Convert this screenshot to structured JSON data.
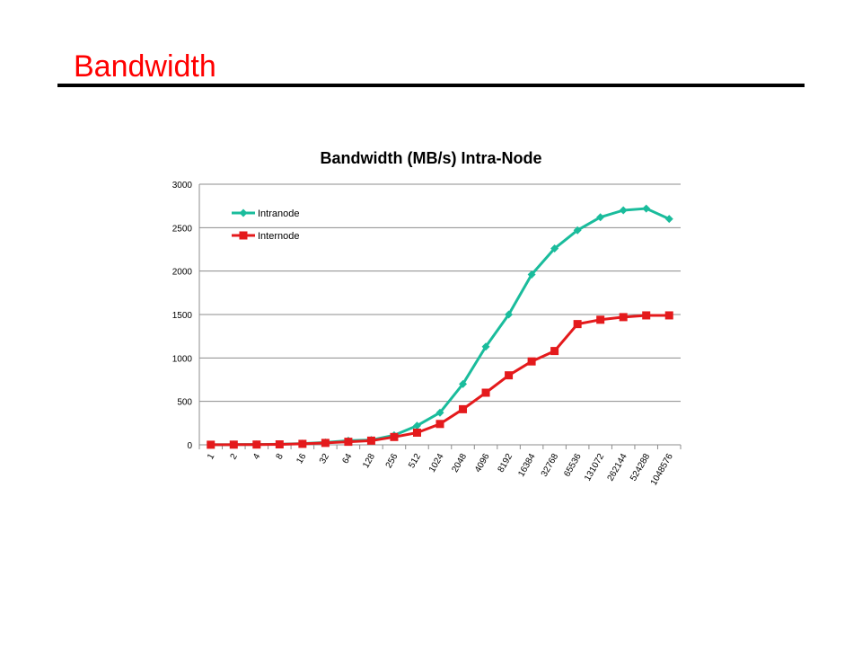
{
  "slide": {
    "title": "Bandwidth",
    "title_color": "#ff0000"
  },
  "chart_data": {
    "type": "line",
    "title": "Bandwidth (MB/s) Intra-Node",
    "xlabel": "",
    "ylabel": "",
    "categories": [
      "1",
      "2",
      "4",
      "8",
      "16",
      "32",
      "64",
      "128",
      "256",
      "512",
      "1024",
      "2048",
      "4096",
      "8192",
      "16384",
      "32768",
      "65536",
      "131072",
      "262144",
      "524288",
      "1048576"
    ],
    "ylim": [
      0,
      3000
    ],
    "yticks": [
      "0",
      "500",
      "1000",
      "1500",
      "2000",
      "2500",
      "3000"
    ],
    "grid": true,
    "legend_position": "top-left",
    "series": [
      {
        "name": "Intranode",
        "color": "#1abc9c",
        "marker": "diamond",
        "values": [
          1,
          2,
          4,
          7,
          14,
          27,
          48,
          55,
          110,
          220,
          370,
          700,
          1130,
          1500,
          1960,
          2260,
          2470,
          2620,
          2700,
          2720,
          2600
        ]
      },
      {
        "name": "Internode",
        "color": "#e41a1c",
        "marker": "square",
        "values": [
          1,
          2,
          3,
          5,
          11,
          22,
          35,
          48,
          90,
          140,
          240,
          410,
          600,
          800,
          960,
          1080,
          1390,
          1440,
          1470,
          1490,
          1490
        ]
      }
    ]
  }
}
